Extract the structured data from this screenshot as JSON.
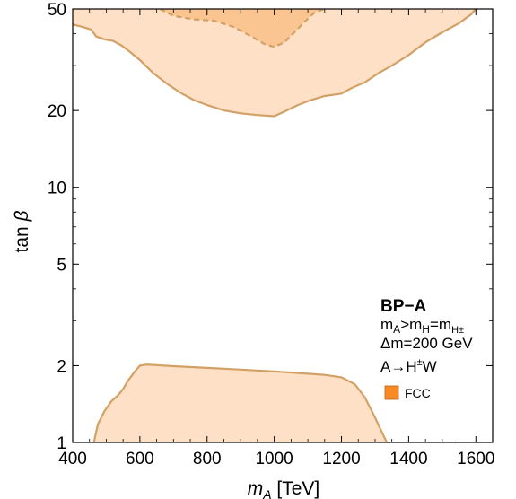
{
  "chart_data": {
    "type": "area",
    "xlabel": {
      "symbol": "m",
      "subscript": "A",
      "unit": " [TeV]"
    },
    "ylabel": {
      "text": "tan ",
      "symbol": "β"
    },
    "xlim": [
      400,
      1650
    ],
    "ylim": [
      1,
      50
    ],
    "yscale": "log",
    "grid": false,
    "xticks": [
      400,
      600,
      800,
      1000,
      1200,
      1400,
      1600
    ],
    "xtick_labels": [
      "400",
      "600",
      "800",
      "1000",
      "1200",
      "1400",
      "1600"
    ],
    "yticks": [
      1,
      2,
      5,
      10,
      20,
      50
    ],
    "ytick_labels": [
      "1",
      "2",
      "5",
      "10",
      "20",
      "50"
    ],
    "colors": {
      "region_fill": "#fde0c6",
      "region_edge": "#d3a066",
      "inner_fill": "#fbc592",
      "legend_swatch": "#f98a22",
      "legend_text": "#a7591c"
    },
    "legend": {
      "placement": "lower-right",
      "title": "BP−A",
      "line1": {
        "a": "m",
        "a_sub": "A",
        "op1": ">",
        "b": "m",
        "b_sub": "H",
        "op2": "=",
        "c": "m",
        "c_sub": "H±"
      },
      "line2": "Δm=200 GeV",
      "line3": {
        "base": "A→H",
        "sup": "±",
        "rest": "W"
      },
      "entry": "FCC"
    },
    "regions": [
      {
        "name": "upper-region",
        "boundary": "solid",
        "points": [
          [
            400,
            43.5
          ],
          [
            430,
            42.5
          ],
          [
            455,
            41.5
          ],
          [
            470,
            39
          ],
          [
            495,
            38
          ],
          [
            520,
            37.5
          ],
          [
            545,
            36
          ],
          [
            570,
            34
          ],
          [
            600,
            31.5
          ],
          [
            640,
            28
          ],
          [
            680,
            25.5
          ],
          [
            720,
            23.5
          ],
          [
            760,
            22
          ],
          [
            800,
            21
          ],
          [
            850,
            20
          ],
          [
            900,
            19.5
          ],
          [
            950,
            19.2
          ],
          [
            1000,
            19
          ],
          [
            1030,
            19.8
          ],
          [
            1070,
            21
          ],
          [
            1110,
            22
          ],
          [
            1150,
            22.8
          ],
          [
            1200,
            23.3
          ],
          [
            1230,
            24.5
          ],
          [
            1270,
            25.8
          ],
          [
            1310,
            28
          ],
          [
            1350,
            30
          ],
          [
            1400,
            33
          ],
          [
            1450,
            37
          ],
          [
            1500,
            40.5
          ],
          [
            1550,
            44
          ],
          [
            1585,
            47.5
          ],
          [
            1600,
            50
          ]
        ]
      },
      {
        "name": "lower-region",
        "boundary": "solid",
        "points": [
          [
            463,
            1
          ],
          [
            475,
            1.18
          ],
          [
            495,
            1.33
          ],
          [
            515,
            1.45
          ],
          [
            535,
            1.53
          ],
          [
            550,
            1.62
          ],
          [
            565,
            1.75
          ],
          [
            585,
            1.9
          ],
          [
            600,
            2.0
          ],
          [
            620,
            2.02
          ],
          [
            700,
            1.99
          ],
          [
            800,
            1.96
          ],
          [
            900,
            1.93
          ],
          [
            1000,
            1.9
          ],
          [
            1100,
            1.86
          ],
          [
            1150,
            1.84
          ],
          [
            1200,
            1.8
          ],
          [
            1240,
            1.69
          ],
          [
            1270,
            1.5
          ],
          [
            1300,
            1.25
          ],
          [
            1320,
            1.1
          ],
          [
            1335,
            1
          ]
        ]
      },
      {
        "name": "inner-upper-region",
        "boundary": "dashed",
        "points": [
          [
            660,
            50
          ],
          [
            700,
            47
          ],
          [
            760,
            45.5
          ],
          [
            820,
            45
          ],
          [
            880,
            42.5
          ],
          [
            940,
            38.5
          ],
          [
            970,
            36.5
          ],
          [
            1000,
            35.5
          ],
          [
            1030,
            37
          ],
          [
            1060,
            40.5
          ],
          [
            1090,
            44.5
          ],
          [
            1120,
            48.5
          ],
          [
            1150,
            50
          ]
        ]
      }
    ]
  }
}
